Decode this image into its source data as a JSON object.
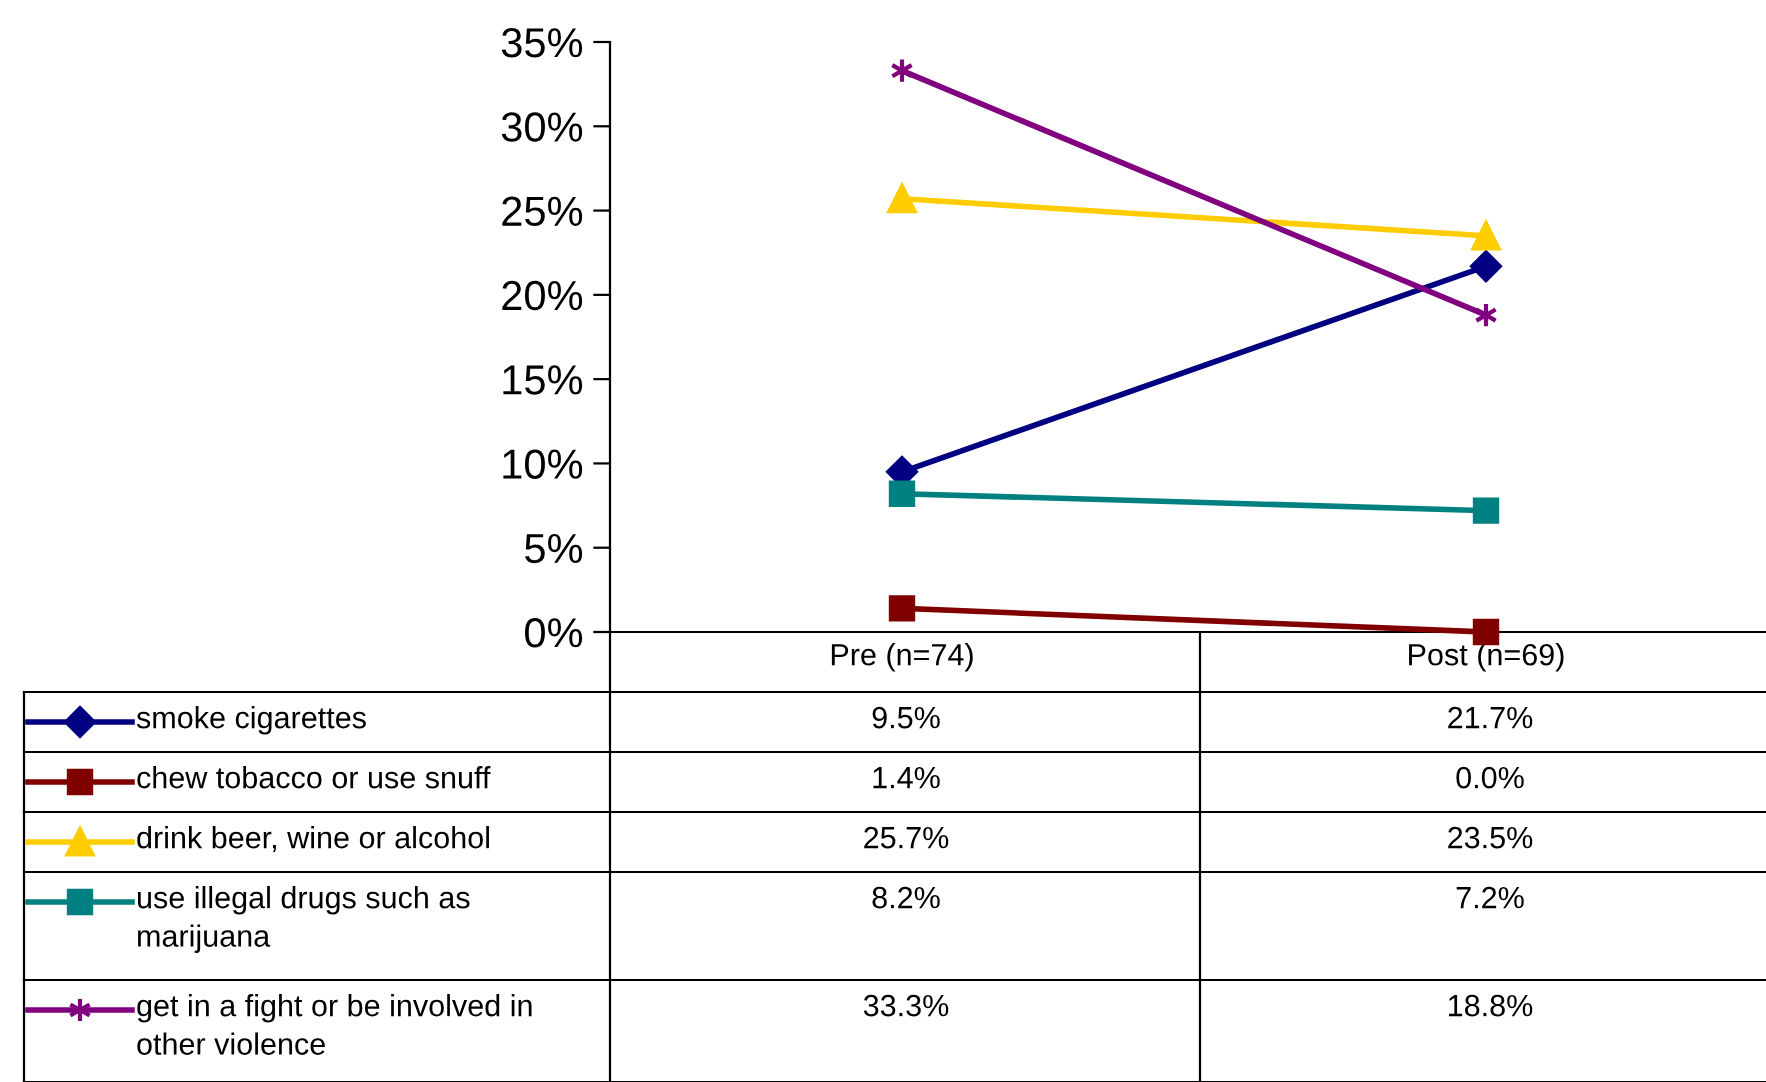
{
  "chart_data": {
    "type": "line",
    "categories": [
      "Pre (n=74)",
      "Post (n=69)"
    ],
    "series": [
      {
        "name": "smoke cigarettes",
        "color": "#000080",
        "marker": "diamond",
        "values": [
          9.5,
          21.7
        ],
        "value_labels": [
          "9.5%",
          "21.7%"
        ]
      },
      {
        "name": "chew tobacco or use snuff",
        "color": "#800000",
        "marker": "square",
        "values": [
          1.4,
          0.0
        ],
        "value_labels": [
          "1.4%",
          "0.0%"
        ]
      },
      {
        "name": "drink beer, wine or alcohol",
        "color": "#ffcc00",
        "marker": "triangle",
        "values": [
          25.7,
          23.5
        ],
        "value_labels": [
          "25.7%",
          "23.5%"
        ]
      },
      {
        "name": "use illegal drugs such as\nmarijuana",
        "color": "#008080",
        "marker": "square",
        "values": [
          8.2,
          7.2
        ],
        "value_labels": [
          "8.2%",
          "7.2%"
        ]
      },
      {
        "name": "get in a fight or be involved in\nother violence",
        "color": "#800080",
        "marker": "cross",
        "values": [
          33.3,
          18.8
        ],
        "value_labels": [
          "33.3%",
          "18.8%"
        ]
      }
    ],
    "ylim": [
      0,
      35
    ],
    "yticks": [
      {
        "value": 0,
        "label": "0%"
      },
      {
        "value": 5,
        "label": "5%"
      },
      {
        "value": 10,
        "label": "10%"
      },
      {
        "value": 15,
        "label": "15%"
      },
      {
        "value": 20,
        "label": "20%"
      },
      {
        "value": 25,
        "label": "25%"
      },
      {
        "value": 30,
        "label": "30%"
      },
      {
        "value": 35,
        "label": "35%"
      }
    ],
    "legend": "bottom",
    "grid": false
  }
}
